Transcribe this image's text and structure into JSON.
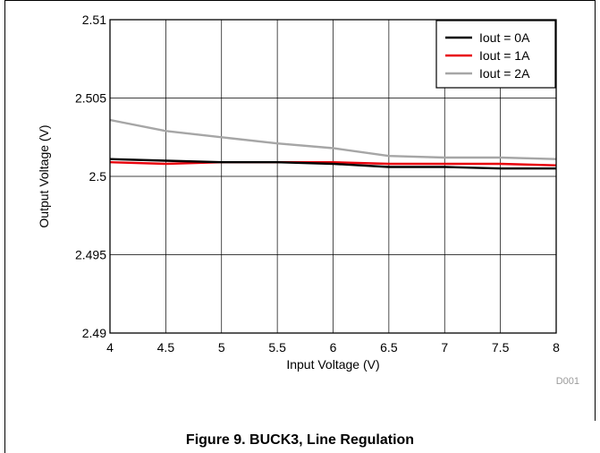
{
  "caption": "Figure 9. BUCK3, Line Regulation",
  "chart_data": {
    "type": "line",
    "xlabel": "Input Voltage (V)",
    "ylabel": "Output Voltage (V)",
    "xlim": [
      4,
      8
    ],
    "ylim": [
      2.49,
      2.51
    ],
    "x_ticks": [
      4,
      4.5,
      5,
      5.5,
      6,
      6.5,
      7,
      7.5,
      8
    ],
    "x_tick_labels": [
      "4",
      "4.5",
      "5",
      "5.5",
      "6",
      "6.5",
      "7",
      "7.5",
      "8"
    ],
    "y_ticks": [
      2.49,
      2.495,
      2.5,
      2.505,
      2.51
    ],
    "y_tick_labels": [
      "2.49",
      "2.495",
      "2.5",
      "2.505",
      "2.51"
    ],
    "grid": true,
    "legend_position": "top-right",
    "code": "D001",
    "series": [
      {
        "name": "Iout = 0A",
        "color": "#000000",
        "x": [
          4,
          4.5,
          5,
          5.5,
          6,
          6.5,
          7,
          7.5,
          8
        ],
        "y": [
          2.5011,
          2.501,
          2.5009,
          2.5009,
          2.5008,
          2.5006,
          2.5006,
          2.5005,
          2.5005
        ]
      },
      {
        "name": "Iout = 1A",
        "color": "#e8000b",
        "x": [
          4,
          4.5,
          5,
          5.5,
          6,
          6.5,
          7,
          7.5,
          8
        ],
        "y": [
          2.5009,
          2.5008,
          2.5009,
          2.5009,
          2.5009,
          2.5008,
          2.5008,
          2.5008,
          2.5007
        ]
      },
      {
        "name": "Iout = 2A",
        "color": "#a6a6a6",
        "x": [
          4,
          4.5,
          5,
          5.5,
          6,
          6.5,
          7,
          7.5,
          8
        ],
        "y": [
          2.5036,
          2.5029,
          2.5025,
          2.5021,
          2.5018,
          2.5013,
          2.5012,
          2.5012,
          2.5011
        ]
      }
    ]
  }
}
